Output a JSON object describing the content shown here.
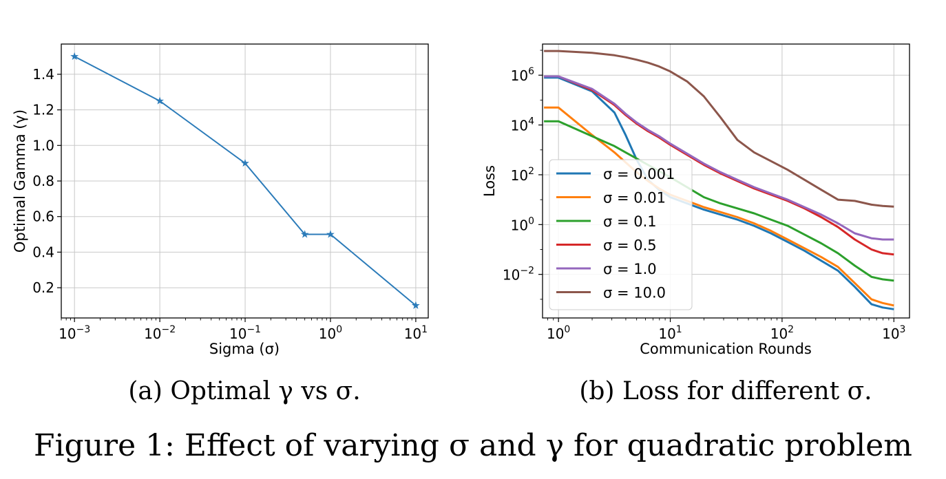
{
  "figure": {
    "caption": "Figure 1: Effect of varying σ and γ for quadratic problem"
  },
  "chart_data": [
    {
      "type": "line",
      "caption": "(a) Optimal γ vs σ.",
      "xlabel": "Sigma (σ)",
      "ylabel": "Optimal Gamma (γ)",
      "xscale": "log",
      "xlim": [
        0.0007,
        14
      ],
      "ylim": [
        0.03,
        1.57
      ],
      "grid": true,
      "color": "#2b7bb9",
      "marker": "star",
      "x_ticks": [
        {
          "value": 0.001,
          "base": "10",
          "exp": "−3"
        },
        {
          "value": 0.01,
          "base": "10",
          "exp": "−2"
        },
        {
          "value": 0.1,
          "base": "10",
          "exp": "−1"
        },
        {
          "value": 1,
          "base": "10",
          "exp": "0"
        },
        {
          "value": 10,
          "base": "10",
          "exp": "1"
        }
      ],
      "y_ticks": [
        "0.2",
        "0.4",
        "0.6",
        "0.8",
        "1.0",
        "1.2",
        "1.4"
      ],
      "series": [
        {
          "x": [
            0.001,
            0.01,
            0.1,
            0.5,
            1,
            10
          ],
          "y": [
            1.5,
            1.25,
            0.9,
            0.5,
            0.5,
            0.1
          ]
        }
      ]
    },
    {
      "type": "line",
      "caption": "(b) Loss for different σ.",
      "xlabel": "Communication Rounds",
      "ylabel": "Loss",
      "xscale": "log",
      "yscale": "log",
      "xlim": [
        0.72,
        1380
      ],
      "ylim_log10": [
        -3.75,
        7.25
      ],
      "grid": true,
      "legend_position": "center-left",
      "x_ticks": [
        {
          "value": 1,
          "base": "10",
          "exp": "0"
        },
        {
          "value": 10,
          "base": "10",
          "exp": "1"
        },
        {
          "value": 100,
          "base": "10",
          "exp": "2"
        },
        {
          "value": 1000,
          "base": "10",
          "exp": "3"
        }
      ],
      "y_ticks": [
        {
          "log10": -2,
          "base": "10",
          "exp": "−2"
        },
        {
          "log10": 0,
          "base": "10",
          "exp": "0"
        },
        {
          "log10": 2,
          "base": "10",
          "exp": "2"
        },
        {
          "log10": 4,
          "base": "10",
          "exp": "4"
        },
        {
          "log10": 6,
          "base": "10",
          "exp": "6"
        }
      ],
      "x_log10_samples": [
        -0.13,
        0,
        0.3,
        0.5,
        0.6,
        0.7,
        0.8,
        0.9,
        1.0,
        1.15,
        1.3,
        1.45,
        1.6,
        1.75,
        1.9,
        2.05,
        2.2,
        2.35,
        2.5,
        2.65,
        2.8,
        2.9,
        3.0
      ],
      "series": [
        {
          "name": "σ = 0.001",
          "color": "#1f77b4",
          "loss_log10": [
            5.9,
            5.9,
            5.35,
            4.5,
            3.6,
            2.6,
            1.8,
            1.4,
            1.1,
            0.85,
            0.6,
            0.4,
            0.2,
            -0.05,
            -0.35,
            -0.7,
            -1.05,
            -1.45,
            -1.85,
            -2.5,
            -3.2,
            -3.33,
            -3.4
          ]
        },
        {
          "name": "σ = 0.01",
          "color": "#ff7f0e",
          "loss_log10": [
            4.7,
            4.7,
            3.6,
            2.9,
            2.5,
            2.1,
            1.75,
            1.45,
            1.2,
            0.95,
            0.7,
            0.5,
            0.3,
            0.05,
            -0.25,
            -0.6,
            -0.95,
            -1.3,
            -1.7,
            -2.35,
            -3.0,
            -3.15,
            -3.25
          ]
        },
        {
          "name": "σ = 0.1",
          "color": "#2ca02c",
          "loss_log10": [
            4.15,
            4.15,
            3.55,
            3.15,
            2.9,
            2.65,
            2.4,
            2.15,
            1.9,
            1.5,
            1.1,
            0.85,
            0.65,
            0.45,
            0.2,
            -0.05,
            -0.4,
            -0.75,
            -1.15,
            -1.65,
            -2.1,
            -2.2,
            -2.25
          ]
        },
        {
          "name": "σ = 0.5",
          "color": "#d62728",
          "loss_log10": [
            5.95,
            5.95,
            5.4,
            4.8,
            4.4,
            4.05,
            3.75,
            3.5,
            3.2,
            2.8,
            2.4,
            2.05,
            1.75,
            1.45,
            1.2,
            0.95,
            0.65,
            0.3,
            -0.1,
            -0.6,
            -1.0,
            -1.15,
            -1.2
          ]
        },
        {
          "name": "σ = 1.0",
          "color": "#9467bd",
          "loss_log10": [
            5.95,
            5.95,
            5.45,
            4.85,
            4.45,
            4.1,
            3.8,
            3.55,
            3.25,
            2.85,
            2.45,
            2.1,
            1.8,
            1.5,
            1.25,
            1.0,
            0.7,
            0.4,
            0.05,
            -0.35,
            -0.55,
            -0.6,
            -0.6
          ]
        },
        {
          "name": "σ = 10.0",
          "color": "#8c564b",
          "loss_log10": [
            6.97,
            6.97,
            6.9,
            6.8,
            6.72,
            6.62,
            6.5,
            6.35,
            6.15,
            5.75,
            5.15,
            4.3,
            3.4,
            2.9,
            2.55,
            2.2,
            1.8,
            1.4,
            1.0,
            0.95,
            0.8,
            0.75,
            0.72
          ]
        }
      ]
    }
  ]
}
